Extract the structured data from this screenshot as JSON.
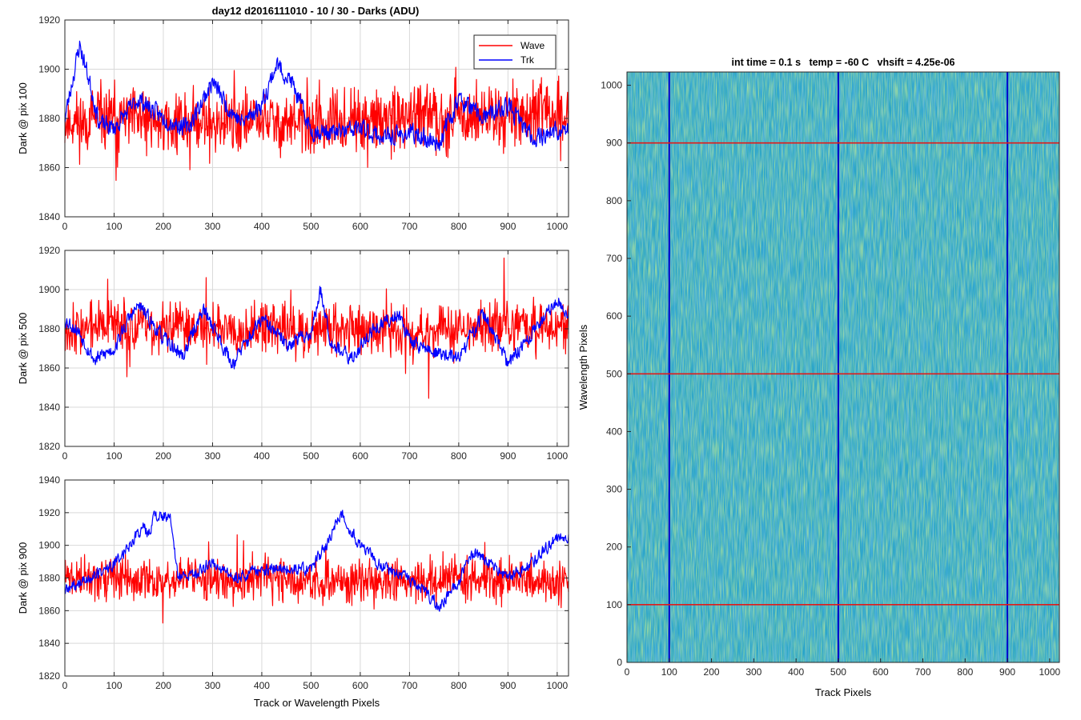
{
  "figure_title": "day12 d2016111010 - 10 / 30 - Darks (ADU)",
  "legend": {
    "placement": "top-right",
    "entries": [
      {
        "label": "Wave",
        "color": "#ff0000"
      },
      {
        "label": "Trk",
        "color": "#0000ff"
      }
    ]
  },
  "colors": {
    "wave": "#ff0000",
    "trk": "#0000ff",
    "grid": "#d9d9d9",
    "axis": "#262626",
    "heatmap_base": "#2aa5c8"
  },
  "chart_data": [
    {
      "type": "line",
      "title": "day12 d2016111010 - 10 / 30 - Darks (ADU)",
      "xlabel": "",
      "ylabel": "Dark @ pix 100",
      "xlim": [
        0,
        1023
      ],
      "ylim": [
        1840,
        1920
      ],
      "xticks": [
        0,
        100,
        200,
        300,
        400,
        500,
        600,
        700,
        800,
        900,
        1000
      ],
      "yticks": [
        1840,
        1860,
        1880,
        1900,
        1920
      ],
      "grid": true,
      "legend": "top-right",
      "series": [
        {
          "name": "Wave",
          "color": "#ff0000",
          "noise": 9,
          "seed": 11,
          "anchors": [
            [
              0,
              1878
            ],
            [
              100,
              1880
            ],
            [
              200,
              1878
            ],
            [
              300,
              1879
            ],
            [
              400,
              1879
            ],
            [
              500,
              1877
            ],
            [
              600,
              1878
            ],
            [
              700,
              1880
            ],
            [
              800,
              1881
            ],
            [
              900,
              1882
            ],
            [
              1000,
              1882
            ],
            [
              1023,
              1880
            ]
          ]
        },
        {
          "name": "Trk",
          "color": "#0000ff",
          "noise": 3,
          "seed": 23,
          "anchors": [
            [
              0,
              1880
            ],
            [
              20,
              1900
            ],
            [
              30,
              1910
            ],
            [
              50,
              1895
            ],
            [
              70,
              1878
            ],
            [
              100,
              1876
            ],
            [
              150,
              1888
            ],
            [
              200,
              1880
            ],
            [
              250,
              1876
            ],
            [
              300,
              1895
            ],
            [
              330,
              1885
            ],
            [
              360,
              1878
            ],
            [
              400,
              1886
            ],
            [
              430,
              1902
            ],
            [
              460,
              1895
            ],
            [
              500,
              1875
            ],
            [
              550,
              1874
            ],
            [
              600,
              1876
            ],
            [
              650,
              1872
            ],
            [
              700,
              1874
            ],
            [
              760,
              1870
            ],
            [
              800,
              1888
            ],
            [
              850,
              1880
            ],
            [
              900,
              1885
            ],
            [
              950,
              1872
            ],
            [
              1000,
              1875
            ],
            [
              1023,
              1875
            ]
          ]
        }
      ]
    },
    {
      "type": "line",
      "title": "",
      "xlabel": "",
      "ylabel": "Dark @ pix 500",
      "xlim": [
        0,
        1023
      ],
      "ylim": [
        1820,
        1920
      ],
      "xticks": [
        0,
        100,
        200,
        300,
        400,
        500,
        600,
        700,
        800,
        900,
        1000
      ],
      "yticks": [
        1820,
        1840,
        1860,
        1880,
        1900,
        1920
      ],
      "grid": true,
      "series": [
        {
          "name": "Wave",
          "color": "#ff0000",
          "noise": 9,
          "seed": 37,
          "anchors": [
            [
              0,
              1880
            ],
            [
              100,
              1882
            ],
            [
              200,
              1880
            ],
            [
              300,
              1882
            ],
            [
              400,
              1880
            ],
            [
              500,
              1880
            ],
            [
              600,
              1880
            ],
            [
              700,
              1878
            ],
            [
              800,
              1880
            ],
            [
              900,
              1882
            ],
            [
              1023,
              1882
            ]
          ]
        },
        {
          "name": "Trk",
          "color": "#0000ff",
          "noise": 3,
          "seed": 53,
          "anchors": [
            [
              0,
              1885
            ],
            [
              30,
              1878
            ],
            [
              60,
              1864
            ],
            [
              100,
              1870
            ],
            [
              130,
              1885
            ],
            [
              150,
              1892
            ],
            [
              200,
              1875
            ],
            [
              240,
              1866
            ],
            [
              280,
              1890
            ],
            [
              300,
              1882
            ],
            [
              340,
              1862
            ],
            [
              400,
              1885
            ],
            [
              450,
              1872
            ],
            [
              500,
              1878
            ],
            [
              520,
              1900
            ],
            [
              540,
              1874
            ],
            [
              580,
              1864
            ],
            [
              620,
              1878
            ],
            [
              680,
              1888
            ],
            [
              700,
              1874
            ],
            [
              750,
              1868
            ],
            [
              800,
              1865
            ],
            [
              850,
              1888
            ],
            [
              900,
              1862
            ],
            [
              950,
              1878
            ],
            [
              1000,
              1895
            ],
            [
              1023,
              1888
            ]
          ]
        }
      ]
    },
    {
      "type": "line",
      "title": "",
      "xlabel": "Track or Wavelength Pixels",
      "ylabel": "Dark @ pix 900",
      "xlim": [
        0,
        1023
      ],
      "ylim": [
        1820,
        1940
      ],
      "xticks": [
        0,
        100,
        200,
        300,
        400,
        500,
        600,
        700,
        800,
        900,
        1000
      ],
      "yticks": [
        1820,
        1840,
        1860,
        1880,
        1900,
        1920,
        1940
      ],
      "grid": true,
      "series": [
        {
          "name": "Wave",
          "color": "#ff0000",
          "noise": 9,
          "seed": 71,
          "anchors": [
            [
              0,
              1880
            ],
            [
              100,
              1880
            ],
            [
              200,
              1878
            ],
            [
              300,
              1880
            ],
            [
              400,
              1880
            ],
            [
              500,
              1876
            ],
            [
              600,
              1878
            ],
            [
              700,
              1878
            ],
            [
              800,
              1880
            ],
            [
              900,
              1880
            ],
            [
              1023,
              1878
            ]
          ]
        },
        {
          "name": "Trk",
          "color": "#0000ff",
          "noise": 3,
          "seed": 89,
          "anchors": [
            [
              0,
              1872
            ],
            [
              50,
              1880
            ],
            [
              100,
              1888
            ],
            [
              130,
              1900
            ],
            [
              160,
              1912
            ],
            [
              170,
              1905
            ],
            [
              180,
              1918
            ],
            [
              200,
              1918
            ],
            [
              215,
              1915
            ],
            [
              230,
              1880
            ],
            [
              260,
              1882
            ],
            [
              300,
              1890
            ],
            [
              340,
              1880
            ],
            [
              400,
              1885
            ],
            [
              450,
              1886
            ],
            [
              500,
              1885
            ],
            [
              540,
              1905
            ],
            [
              560,
              1920
            ],
            [
              600,
              1900
            ],
            [
              640,
              1888
            ],
            [
              680,
              1882
            ],
            [
              720,
              1875
            ],
            [
              760,
              1862
            ],
            [
              800,
              1878
            ],
            [
              830,
              1896
            ],
            [
              870,
              1888
            ],
            [
              900,
              1880
            ],
            [
              950,
              1890
            ],
            [
              1000,
              1905
            ],
            [
              1023,
              1905
            ]
          ]
        }
      ]
    },
    {
      "type": "heatmap",
      "title": "int time = 0.1 s   temp = -60 C   vhsift = 4.25e-06",
      "xlabel": "Track Pixels",
      "ylabel": "Wavelength Pixels",
      "xlim": [
        0,
        1023
      ],
      "ylim": [
        0,
        1023
      ],
      "xticks": [
        0,
        100,
        200,
        300,
        400,
        500,
        600,
        700,
        800,
        900,
        1000
      ],
      "yticks": [
        0,
        100,
        200,
        300,
        400,
        500,
        600,
        700,
        800,
        900,
        1000
      ],
      "grid": false,
      "colormap": "parula",
      "vertical_markers": {
        "positions": [
          100,
          500,
          900
        ],
        "color": "#0000cc"
      },
      "horizontal_markers": {
        "positions": [
          100,
          500,
          900
        ],
        "color": "#e01a1a"
      }
    }
  ]
}
